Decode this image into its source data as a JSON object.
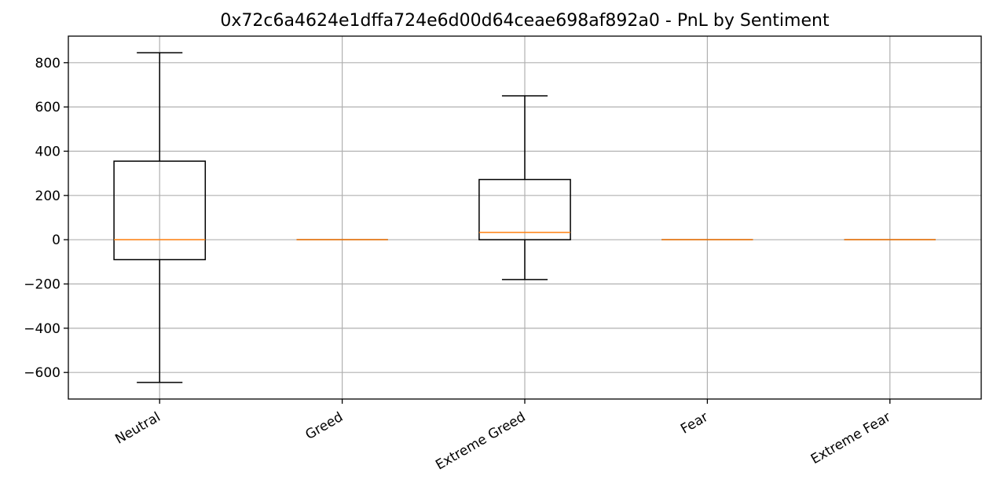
{
  "chart_data": {
    "type": "box",
    "title": "0x72c6a4624e1dffa724e6d00d64ceae698af892a0 - PnL by Sentiment",
    "xlabel": "",
    "ylabel": "",
    "categories": [
      "Neutral",
      "Greed",
      "Extreme Greed",
      "Fear",
      "Extreme Fear"
    ],
    "boxes": [
      {
        "category": "Neutral",
        "whisker_low": -645,
        "q1": -90,
        "median": 0,
        "q3": 355,
        "whisker_high": 845
      },
      {
        "category": "Greed",
        "whisker_low": 0,
        "q1": 0,
        "median": 0,
        "q3": 0,
        "whisker_high": 0
      },
      {
        "category": "Extreme Greed",
        "whisker_low": -180,
        "q1": 0,
        "median": 33,
        "q3": 272,
        "whisker_high": 650
      },
      {
        "category": "Fear",
        "whisker_low": 0,
        "q1": 0,
        "median": 0,
        "q3": 0,
        "whisker_high": 0
      },
      {
        "category": "Extreme Fear",
        "whisker_low": 0,
        "q1": 0,
        "median": 0,
        "q3": 0,
        "whisker_high": 0
      }
    ],
    "ylim": [
      -720,
      920
    ],
    "yticks": [
      -600,
      -400,
      -200,
      0,
      200,
      400,
      600,
      800
    ],
    "grid": true,
    "colors": {
      "box": "#000000",
      "median": "#ff7f0e",
      "grid": "#b0b0b0"
    }
  }
}
